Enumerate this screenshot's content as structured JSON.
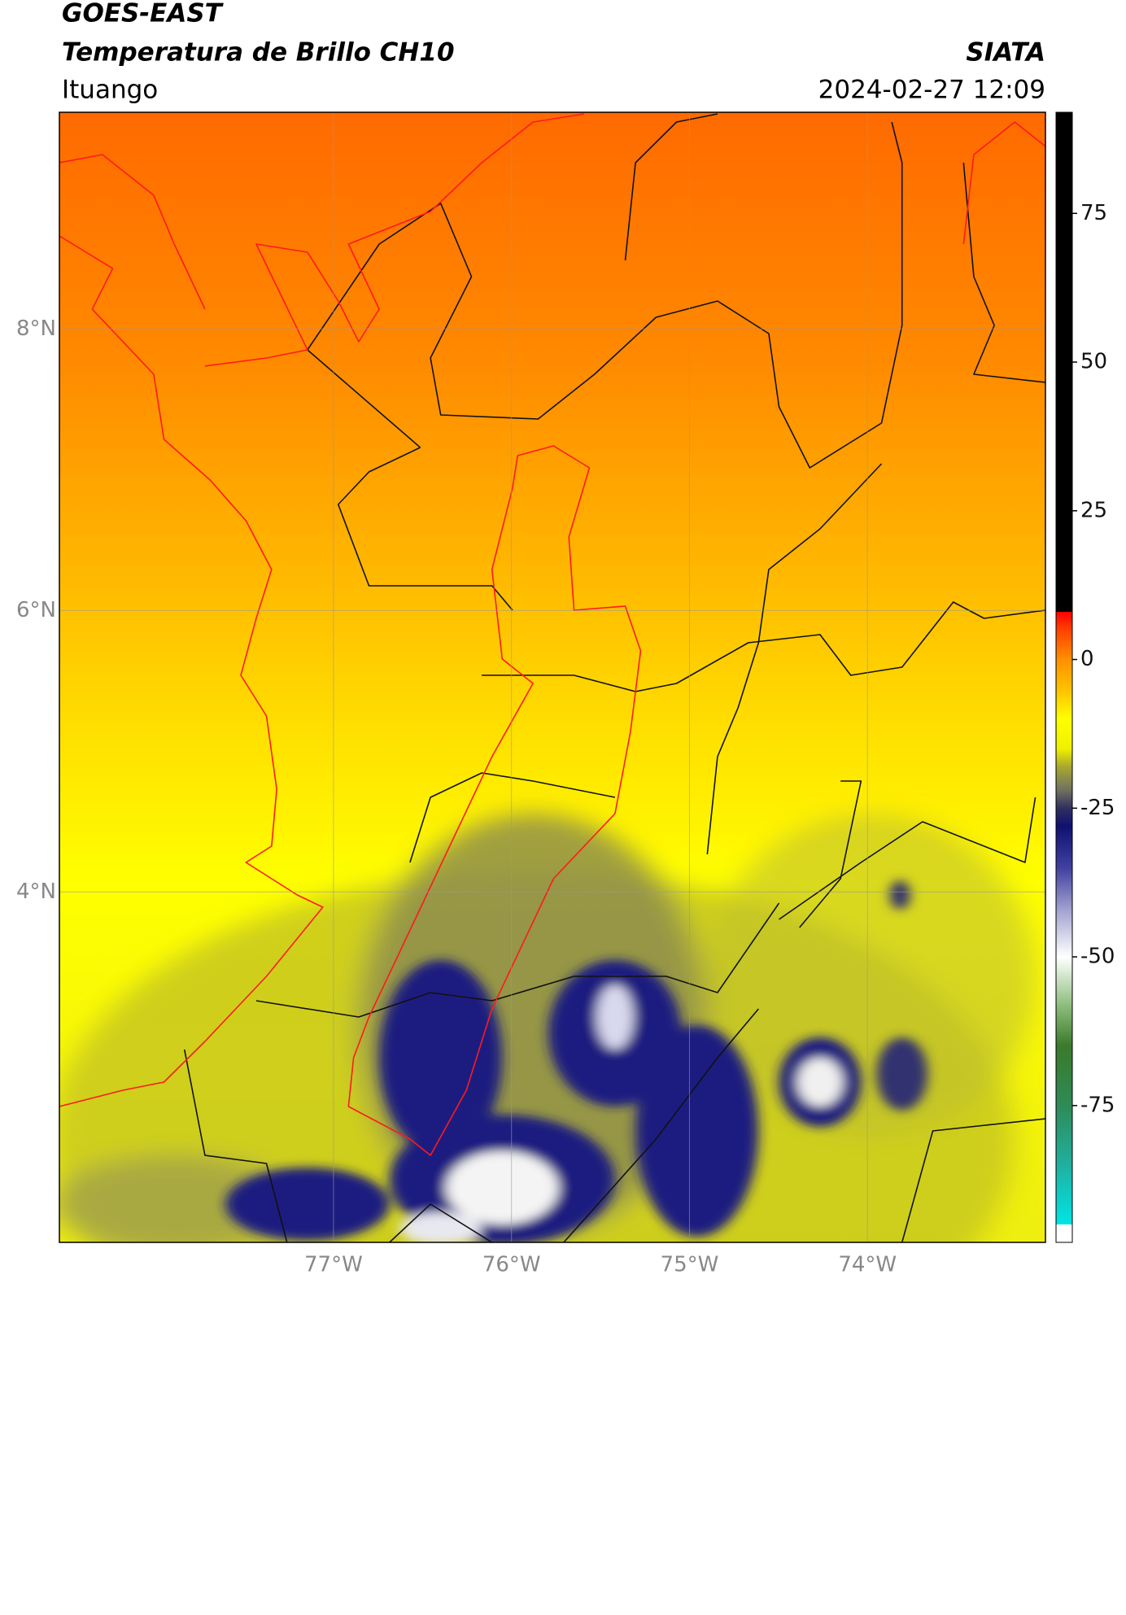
{
  "chart_data": {
    "type": "map",
    "title": "GOES-EAST",
    "subtitle": "Temperatura de Brillo CH10",
    "source": "SIATA",
    "region": "Ituango",
    "timestamp": "2024-02-27 12:09",
    "xlim": [
      -78.54,
      -73.0
    ],
    "ylim": [
      1.51,
      9.54
    ],
    "xticks": [
      {
        "value": -77,
        "label": "77°W"
      },
      {
        "value": -76,
        "label": "76°W"
      },
      {
        "value": -75,
        "label": "75°W"
      },
      {
        "value": -74,
        "label": "74°W"
      }
    ],
    "yticks": [
      {
        "value": 4,
        "label": "4°N"
      },
      {
        "value": 6,
        "label": "6°N"
      },
      {
        "value": 8,
        "label": "8°N"
      }
    ],
    "grid": true,
    "colorbar": {
      "lim": [
        -98,
        92
      ],
      "ticks": [
        -75,
        -50,
        -25,
        0,
        25,
        50,
        75
      ],
      "stops": [
        {
          "value": -98,
          "color": "#ffffff"
        },
        {
          "value": -95,
          "color": "#ffffff"
        },
        {
          "value": -95,
          "color": "#00e5e5"
        },
        {
          "value": -85,
          "color": "#20b0a0"
        },
        {
          "value": -75,
          "color": "#2e8b57"
        },
        {
          "value": -65,
          "color": "#3a7a2a"
        },
        {
          "value": -58,
          "color": "#8fbf7f"
        },
        {
          "value": -50,
          "color": "#ffffff"
        },
        {
          "value": -42,
          "color": "#a0a0d0"
        },
        {
          "value": -35,
          "color": "#4040a0"
        },
        {
          "value": -28,
          "color": "#101070"
        },
        {
          "value": -25,
          "color": "#303060"
        },
        {
          "value": -22,
          "color": "#707060"
        },
        {
          "value": -18,
          "color": "#a8a830"
        },
        {
          "value": -15,
          "color": "#f0f000"
        },
        {
          "value": -10,
          "color": "#ffff00"
        },
        {
          "value": -5,
          "color": "#ffc000"
        },
        {
          "value": 0,
          "color": "#ff9000"
        },
        {
          "value": 5,
          "color": "#ff4000"
        },
        {
          "value": 8,
          "color": "#ff0000"
        },
        {
          "value": 8,
          "color": "#000000"
        },
        {
          "value": 92,
          "color": "#000000"
        }
      ]
    }
  }
}
